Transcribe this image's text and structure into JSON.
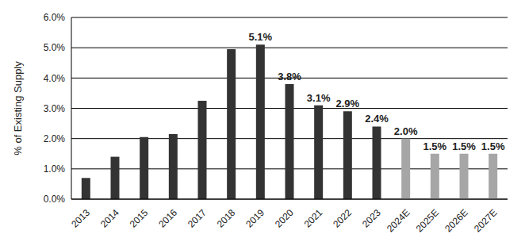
{
  "chart_data": {
    "type": "bar",
    "y_label": "% of Existing Supply",
    "categories": [
      "2013",
      "2014",
      "2015",
      "2016",
      "2017",
      "2018",
      "2019",
      "2020",
      "2021",
      "2022",
      "2023",
      "2024E",
      "2025E",
      "2026E",
      "2027E"
    ],
    "values": [
      0.7,
      1.4,
      2.05,
      2.15,
      3.25,
      4.95,
      5.1,
      3.8,
      3.1,
      2.9,
      2.4,
      2.0,
      1.5,
      1.5,
      1.5
    ],
    "value_labels": [
      null,
      null,
      null,
      null,
      null,
      null,
      "5.1%",
      "3.8%",
      "3.1%",
      "2.9%",
      "2.4%",
      "2.0%",
      "1.5%",
      "1.5%",
      "1.5%"
    ],
    "colors": [
      "#333333",
      "#333333",
      "#333333",
      "#333333",
      "#333333",
      "#333333",
      "#333333",
      "#333333",
      "#333333",
      "#333333",
      "#333333",
      "#a6a6a6",
      "#a6a6a6",
      "#a6a6a6",
      "#a6a6a6"
    ],
    "ylim": [
      0,
      6
    ],
    "yticks": [
      {
        "value": 0,
        "label": "0.0%"
      },
      {
        "value": 1,
        "label": "1.0%"
      },
      {
        "value": 2,
        "label": "2.0%"
      },
      {
        "value": 3,
        "label": "3.0%"
      },
      {
        "value": 4,
        "label": "4.0%"
      },
      {
        "value": 5,
        "label": "5.0%"
      },
      {
        "value": 6,
        "label": "6.0%"
      }
    ],
    "grid": true,
    "data_labels": true
  }
}
